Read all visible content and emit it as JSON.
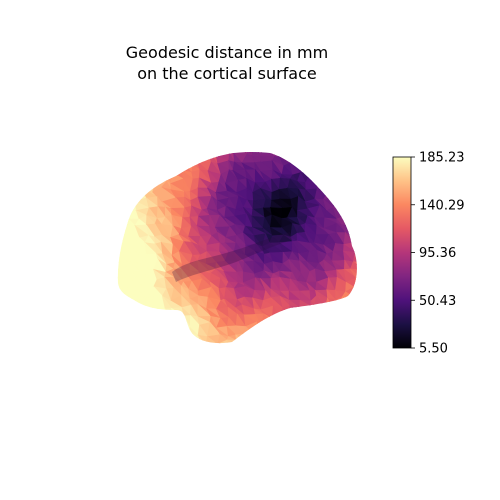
{
  "chart_data": {
    "type": "heatmap",
    "title_lines": [
      "Geodesic distance in mm",
      "on the cortical surface"
    ],
    "colormap": "magma",
    "colorbar": {
      "min": 5.5,
      "max": 185.23,
      "ticks": [
        "5.50",
        "50.43",
        "95.36",
        "140.29",
        "185.23"
      ],
      "placement": "right"
    },
    "surface": {
      "view": "lateral left hemisphere",
      "min_distance_region": "superior parietal",
      "max_distance_region": "frontal pole"
    }
  }
}
